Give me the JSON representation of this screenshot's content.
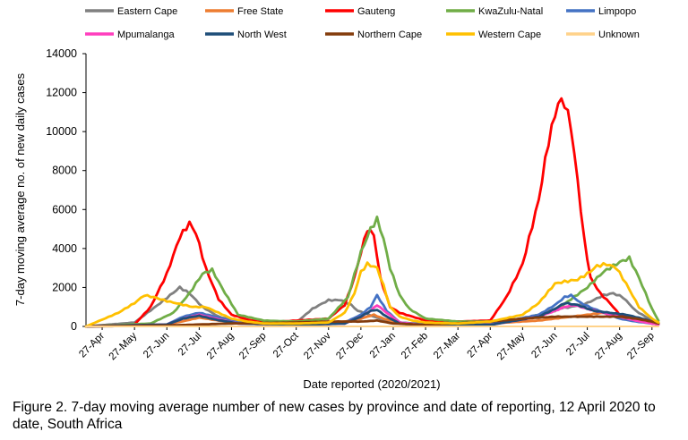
{
  "chart_data": {
    "type": "line",
    "title": "",
    "xlabel": "Date reported (2020/2021)",
    "ylabel": "7-day moving average no. of new daily cases",
    "ylim": [
      0,
      14000
    ],
    "yticks": [
      0,
      2000,
      4000,
      6000,
      8000,
      10000,
      12000,
      14000
    ],
    "xticks": [
      "27-Apr",
      "27-May",
      "27-Jun",
      "27-Jul",
      "27-Aug",
      "27-Sep",
      "27-Oct",
      "27-Nov",
      "27-Dec",
      "27-Jan",
      "27-Feb",
      "27-Mar",
      "27-Apr",
      "27-May",
      "27-Jun",
      "27-Jul",
      "27-Aug",
      "27-Sep"
    ],
    "x_unit": "months since 27-Apr-2020",
    "x_start_label": "12-Apr-2020",
    "x_range": [
      -0.5,
      17.2
    ],
    "legend_position": "top",
    "grid": false,
    "series": [
      {
        "name": "Eastern Cape",
        "color": "#808080",
        "x": [
          -0.5,
          1,
          1.8,
          2.4,
          2.7,
          3.1,
          3.6,
          4.2,
          5,
          6,
          6.5,
          7,
          7.4,
          7.7,
          7.9,
          8.1,
          8.4,
          8.8,
          9.2,
          10,
          12,
          13,
          13.5,
          14,
          14.5,
          15,
          15.5,
          15.8,
          16.1,
          16.5,
          17,
          17.2
        ],
        "values": [
          0,
          200,
          1200,
          2000,
          1700,
          1000,
          500,
          250,
          150,
          200,
          900,
          1350,
          1350,
          1100,
          800,
          700,
          500,
          300,
          200,
          120,
          200,
          400,
          600,
          900,
          1000,
          1200,
          1600,
          1700,
          1500,
          800,
          300,
          200
        ]
      },
      {
        "name": "Free State",
        "color": "#ed7d31",
        "x": [
          -0.5,
          2,
          2.6,
          3,
          3.6,
          4.5,
          6,
          7.5,
          8,
          8.4,
          8.7,
          9.3,
          10,
          12,
          13.5,
          14.5,
          15.5,
          16,
          16.5,
          17,
          17.2
        ],
        "values": [
          0,
          100,
          300,
          450,
          300,
          150,
          150,
          250,
          400,
          600,
          400,
          150,
          80,
          150,
          300,
          500,
          700,
          600,
          400,
          200,
          150
        ]
      },
      {
        "name": "Gauteng",
        "color": "#ff0000",
        "x": [
          -0.5,
          1,
          1.5,
          2,
          2.4,
          2.7,
          2.9,
          3.2,
          3.6,
          4,
          4.5,
          5,
          6,
          7,
          7.5,
          7.8,
          8,
          8.2,
          8.4,
          8.6,
          8.9,
          9.2,
          9.6,
          10,
          11,
          12,
          12.5,
          13,
          13.5,
          13.8,
          14.1,
          14.3,
          14.5,
          14.7,
          14.9,
          15.1,
          15.4,
          15.7,
          16,
          16.5,
          17,
          17.2
        ],
        "values": [
          0,
          100,
          1000,
          2700,
          4600,
          5300,
          4800,
          3000,
          1400,
          600,
          350,
          200,
          300,
          400,
          1100,
          2500,
          3800,
          5000,
          4700,
          2500,
          1000,
          700,
          500,
          300,
          250,
          300,
          1500,
          3200,
          6500,
          9500,
          11500,
          11500,
          10200,
          7500,
          4500,
          2500,
          1700,
          1200,
          600,
          300,
          150,
          100
        ]
      },
      {
        "name": "KwaZulu-Natal",
        "color": "#70ad47",
        "x": [
          -0.5,
          1.5,
          2.2,
          2.7,
          3.1,
          3.4,
          3.7,
          4.2,
          5,
          6,
          7,
          7.6,
          8,
          8.3,
          8.5,
          8.7,
          8.9,
          9.2,
          9.5,
          10,
          11,
          12,
          13,
          13.5,
          14,
          14.5,
          15,
          15.5,
          16,
          16.3,
          16.6,
          17,
          17.2
        ],
        "values": [
          0,
          150,
          700,
          1700,
          2700,
          2900,
          2000,
          600,
          300,
          250,
          400,
          1500,
          3800,
          5000,
          5500,
          4500,
          3000,
          1600,
          900,
          400,
          250,
          250,
          400,
          600,
          800,
          1400,
          2000,
          2800,
          3300,
          3500,
          2500,
          900,
          300
        ]
      },
      {
        "name": "Limpopo",
        "color": "#4472c4",
        "x": [
          -0.5,
          2,
          2.5,
          3,
          3.5,
          4.2,
          6,
          7.5,
          8,
          8.3,
          8.5,
          8.8,
          9.2,
          10,
          12,
          13.5,
          14,
          14.3,
          14.5,
          14.8,
          15.2,
          15.7,
          16,
          16.5,
          17,
          17.2
        ],
        "values": [
          0,
          100,
          500,
          700,
          500,
          200,
          100,
          200,
          600,
          1000,
          1600,
          800,
          200,
          80,
          100,
          600,
          1100,
          1500,
          1600,
          1200,
          900,
          600,
          400,
          250,
          150,
          100
        ]
      },
      {
        "name": "Mpumalanga",
        "color": "#ff3ebd",
        "x": [
          -0.5,
          2,
          2.5,
          3,
          3.5,
          4.2,
          6,
          7.5,
          8,
          8.3,
          8.5,
          8.8,
          9.2,
          10,
          12,
          13.5,
          14,
          14.3,
          14.6,
          15,
          15.5,
          16,
          16.5,
          17,
          17.2
        ],
        "values": [
          0,
          100,
          400,
          600,
          400,
          150,
          80,
          150,
          500,
          800,
          1100,
          700,
          200,
          50,
          80,
          500,
          800,
          1000,
          1100,
          900,
          700,
          500,
          300,
          150,
          100
        ]
      },
      {
        "name": "North West",
        "color": "#1f4e79",
        "x": [
          -0.5,
          2,
          2.5,
          3,
          3.5,
          4.2,
          6,
          7.5,
          8,
          8.3,
          8.5,
          8.8,
          9.2,
          10,
          12,
          13.5,
          14,
          14.3,
          14.7,
          15.2,
          15.7,
          16.2,
          16.7,
          17.2
        ],
        "values": [
          0,
          100,
          400,
          550,
          350,
          150,
          80,
          150,
          500,
          800,
          850,
          500,
          150,
          50,
          80,
          500,
          900,
          1200,
          1100,
          800,
          700,
          600,
          400,
          150
        ]
      },
      {
        "name": "Northern Cape",
        "color": "#843c0c",
        "x": [
          -0.5,
          2,
          3,
          4,
          6,
          7,
          8,
          8.5,
          9,
          10,
          12,
          13,
          14,
          15,
          15.5,
          16,
          16.5,
          17,
          17.2
        ],
        "values": [
          0,
          50,
          100,
          150,
          200,
          250,
          250,
          300,
          150,
          80,
          250,
          400,
          500,
          500,
          500,
          500,
          400,
          250,
          150
        ]
      },
      {
        "name": "Western Cape",
        "color": "#ffc000",
        "x": [
          -0.5,
          0.5,
          1,
          1.3,
          1.6,
          2,
          2.4,
          2.8,
          3.2,
          3.6,
          4,
          4.5,
          5,
          6,
          7,
          7.5,
          7.8,
          8,
          8.2,
          8.5,
          8.7,
          8.9,
          9.2,
          9.6,
          10,
          11,
          12,
          13,
          13.5,
          14,
          14.3,
          14.7,
          15,
          15.3,
          15.6,
          15.9,
          16.2,
          16.6,
          17,
          17.2
        ],
        "values": [
          0,
          700,
          1200,
          1600,
          1500,
          1300,
          1150,
          1000,
          1000,
          700,
          400,
          250,
          150,
          150,
          200,
          700,
          1700,
          2800,
          3200,
          3000,
          2100,
          1000,
          500,
          300,
          200,
          150,
          250,
          600,
          1200,
          2200,
          2300,
          2400,
          2700,
          3100,
          3200,
          3000,
          2200,
          1000,
          400,
          200
        ]
      },
      {
        "name": "Unknown",
        "color": "#ffd28a",
        "x": [
          -0.5,
          17.2
        ],
        "values": [
          0,
          0
        ]
      }
    ]
  },
  "caption": "Figure 2. 7-day moving average number of new cases by province and date of reporting, 12 April 2020 to date, South Africa"
}
